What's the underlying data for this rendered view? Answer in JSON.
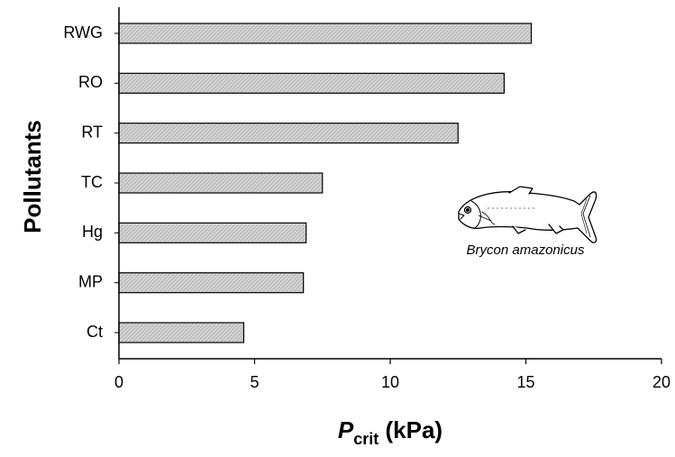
{
  "chart_data": {
    "type": "bar",
    "orientation": "horizontal",
    "categories": [
      "RWG",
      "RO",
      "RT",
      "TC",
      "Hg",
      "MP",
      "Ct"
    ],
    "values": [
      15.2,
      14.2,
      12.5,
      7.5,
      6.9,
      6.8,
      4.6
    ],
    "xlabel_main": "P",
    "xlabel_sub": "crit",
    "xlabel_unit": " (kPa)",
    "ylabel": "Pollutants",
    "xlim": [
      0,
      20
    ],
    "xticks": [
      0,
      5,
      10,
      15,
      20
    ],
    "grid": false,
    "bar_fill": "#c8c8c8",
    "bar_stroke": "#000000",
    "annotation": "Brycon amazonicus",
    "annotation_icon": "fish-icon"
  }
}
